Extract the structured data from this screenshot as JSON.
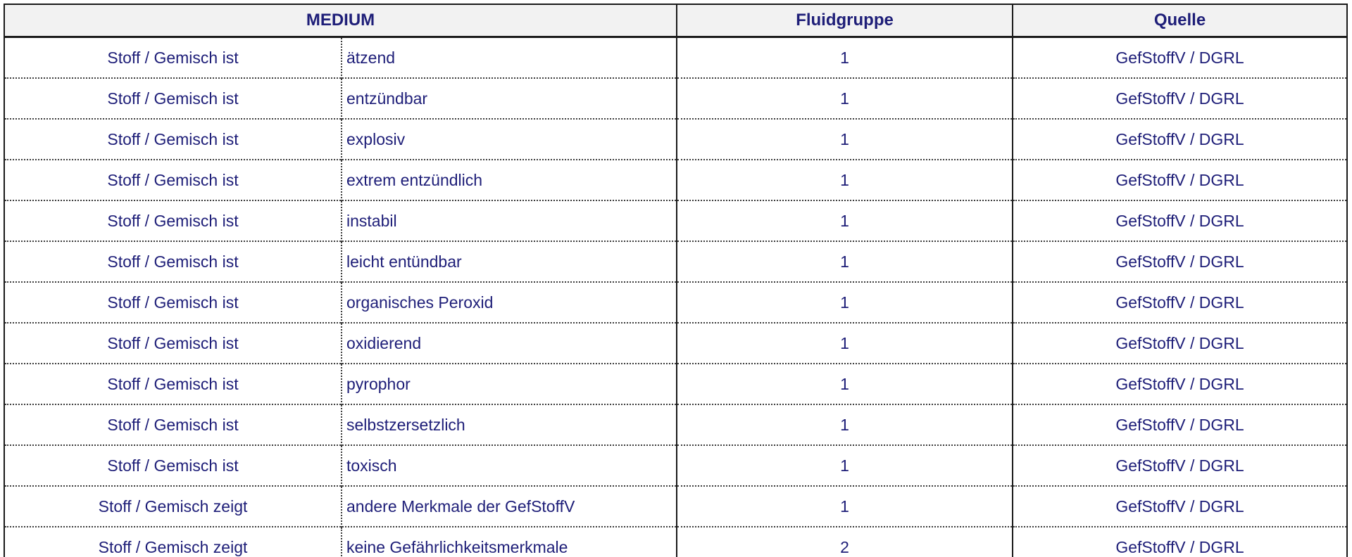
{
  "table": {
    "headers": {
      "medium": "MEDIUM",
      "fluidgruppe": "Fluidgruppe",
      "quelle": "Quelle"
    },
    "rows": [
      {
        "subject": "Stoff / Gemisch ist",
        "property": "ätzend",
        "fluidgruppe": "1",
        "quelle": "GefStoffV / DGRL"
      },
      {
        "subject": "Stoff / Gemisch ist",
        "property": "entzündbar",
        "fluidgruppe": "1",
        "quelle": "GefStoffV / DGRL"
      },
      {
        "subject": "Stoff / Gemisch ist",
        "property": "explosiv",
        "fluidgruppe": "1",
        "quelle": "GefStoffV / DGRL"
      },
      {
        "subject": "Stoff / Gemisch ist",
        "property": "extrem entzündlich",
        "fluidgruppe": "1",
        "quelle": "GefStoffV / DGRL"
      },
      {
        "subject": "Stoff / Gemisch ist",
        "property": "instabil",
        "fluidgruppe": "1",
        "quelle": "GefStoffV / DGRL"
      },
      {
        "subject": "Stoff / Gemisch ist",
        "property": "leicht entündbar",
        "fluidgruppe": "1",
        "quelle": "GefStoffV / DGRL"
      },
      {
        "subject": "Stoff / Gemisch ist",
        "property": "organisches Peroxid",
        "fluidgruppe": "1",
        "quelle": "GefStoffV / DGRL"
      },
      {
        "subject": "Stoff / Gemisch ist",
        "property": "oxidierend",
        "fluidgruppe": "1",
        "quelle": "GefStoffV / DGRL"
      },
      {
        "subject": "Stoff / Gemisch ist",
        "property": "pyrophor",
        "fluidgruppe": "1",
        "quelle": "GefStoffV / DGRL"
      },
      {
        "subject": "Stoff / Gemisch ist",
        "property": "selbstzersetzlich",
        "fluidgruppe": "1",
        "quelle": "GefStoffV / DGRL"
      },
      {
        "subject": "Stoff / Gemisch ist",
        "property": "toxisch",
        "fluidgruppe": "1",
        "quelle": "GefStoffV / DGRL"
      },
      {
        "subject": "Stoff / Gemisch zeigt",
        "property": "andere Merkmale der GefStoffV",
        "fluidgruppe": "1",
        "quelle": "GefStoffV / DGRL"
      },
      {
        "subject": "Stoff / Gemisch zeigt",
        "property": "keine Gefährlichkeitsmerkmale",
        "fluidgruppe": "2",
        "quelle": "GefStoffV / DGRL"
      }
    ]
  },
  "colors": {
    "text": "#1e1e78",
    "header_background": "#f2f2f2",
    "border": "#1a1a1a"
  }
}
